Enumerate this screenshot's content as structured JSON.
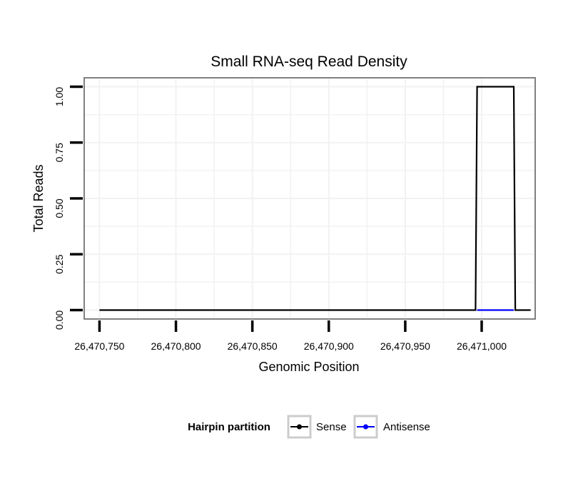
{
  "chart_data": {
    "type": "line",
    "title": "Small RNA-seq Read Density",
    "xlabel": "Genomic Position",
    "ylabel": "Total Reads",
    "xlim": [
      26470740,
      26471035
    ],
    "ylim": [
      -0.04,
      1.04
    ],
    "x_ticks": [
      26470750,
      26470800,
      26470850,
      26470900,
      26470950,
      26471000
    ],
    "x_tick_labels": [
      "26,470,750",
      "26,470,800",
      "26,470,850",
      "26,470,900",
      "26,470,950",
      "26,471,000"
    ],
    "y_ticks": [
      0,
      0.25,
      0.5,
      0.75,
      1
    ],
    "y_tick_labels": [
      "0.00",
      "0.25",
      "0.50",
      "0.75",
      "1.00"
    ],
    "grid": true,
    "legend_title": "Hairpin partition",
    "legend_position": "bottom",
    "series": [
      {
        "name": "Sense",
        "color": "#000000",
        "x": [
          26470750,
          26470996,
          26470997,
          26471021,
          26471022,
          26471032
        ],
        "y": [
          0,
          0,
          1,
          1,
          0,
          0
        ]
      },
      {
        "name": "Antisense",
        "color": "#0000ff",
        "x": [
          26470997,
          26471021
        ],
        "y": [
          0,
          0
        ]
      }
    ]
  }
}
